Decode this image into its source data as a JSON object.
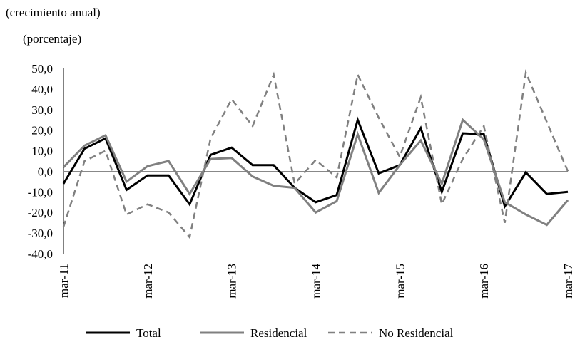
{
  "chart_data": {
    "type": "line",
    "title": "(crecimiento anual)",
    "subtitle": "(porcentaje)",
    "xlabel": "",
    "ylabel": "",
    "ylim": [
      -40,
      50
    ],
    "yticks": [
      "50,0",
      "40,0",
      "30,0",
      "20,0",
      "10,0",
      "0,0",
      "-10,0",
      "-20,0",
      "-30,0",
      "-40,0"
    ],
    "x_tick_labels": [
      "mar-11",
      "mar-12",
      "mar-13",
      "mar-14",
      "mar-15",
      "mar-16",
      "mar-17"
    ],
    "x": [
      "mar-11",
      "jun-11",
      "sep-11",
      "dic-11",
      "mar-12",
      "jun-12",
      "sep-12",
      "dic-12",
      "mar-13",
      "jun-13",
      "sep-13",
      "dic-13",
      "mar-14",
      "jun-14",
      "sep-14",
      "dic-14",
      "mar-15",
      "jun-15",
      "sep-15",
      "dic-15",
      "mar-16",
      "jun-16",
      "sep-16",
      "dic-16",
      "mar-17"
    ],
    "grid": false,
    "legend_position": "bottom",
    "series": [
      {
        "name": "Total",
        "color": "#000000",
        "dash": "solid",
        "values": [
          -6,
          11,
          16,
          -9,
          -2,
          -2,
          -16,
          8,
          11.5,
          3,
          3,
          -8,
          -15,
          -11.5,
          25,
          -1,
          3,
          21,
          -10,
          18.5,
          18,
          -17,
          -0.5,
          -11,
          -10
        ]
      },
      {
        "name": "Residencial",
        "color": "#808080",
        "dash": "solid",
        "values": [
          2,
          12.5,
          17.5,
          -5,
          2.5,
          5,
          -11,
          6,
          6.5,
          -2.5,
          -7,
          -8,
          -20,
          -14.5,
          18,
          -10.5,
          3,
          15,
          -6,
          25,
          15.5,
          -15,
          -21,
          -26,
          -14
        ]
      },
      {
        "name": "No Residencial",
        "color": "#808080",
        "dash": "dashed",
        "values": [
          -27,
          5,
          10,
          -21,
          -16,
          -20,
          -32,
          16,
          35,
          22,
          47,
          -6,
          5.5,
          -3,
          47,
          26,
          7,
          36,
          -16,
          6,
          22,
          -25,
          48,
          24,
          0
        ]
      }
    ]
  }
}
